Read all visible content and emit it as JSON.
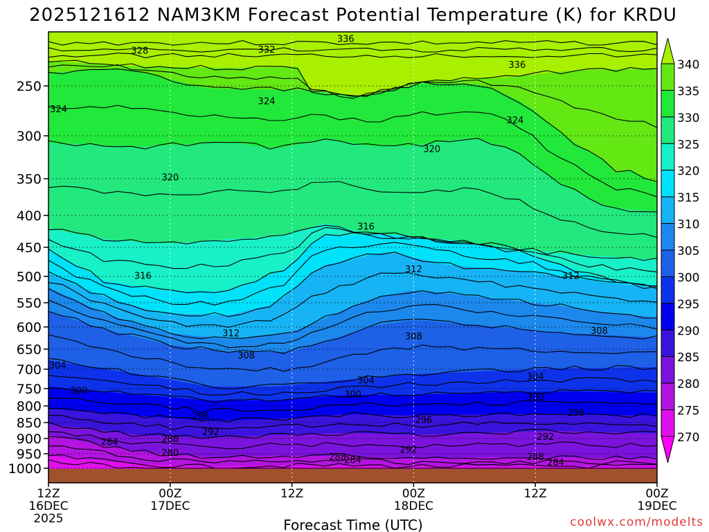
{
  "chart_data": {
    "type": "heatmap",
    "title": "2025121612 NAM3KM Forecast Potential Temperature (K) for KRDU",
    "xlabel": "Forecast Time (UTC)",
    "ylabel": "",
    "credit": "coolwx.com/modelts",
    "x_ticks": [
      {
        "hour": 0,
        "lines": [
          "12Z",
          "16DEC",
          "2025"
        ]
      },
      {
        "hour": 12,
        "lines": [
          "00Z",
          "17DEC"
        ]
      },
      {
        "hour": 24,
        "lines": [
          "12Z"
        ]
      },
      {
        "hour": 36,
        "lines": [
          "00Z",
          "18DEC"
        ]
      },
      {
        "hour": 48,
        "lines": [
          "12Z"
        ]
      },
      {
        "hour": 60,
        "lines": [
          "00Z",
          "19DEC"
        ]
      }
    ],
    "xlim": [
      0,
      60
    ],
    "pressure_ticks": [
      250,
      300,
      350,
      400,
      450,
      500,
      550,
      600,
      650,
      700,
      750,
      800,
      850,
      900,
      950,
      1000
    ],
    "pressure_range": [
      200,
      1013
    ],
    "colorbar": {
      "levels": [
        270,
        275,
        280,
        285,
        290,
        295,
        300,
        305,
        310,
        315,
        320,
        325,
        330,
        335,
        340
      ],
      "colors": [
        "#ff00ff",
        "#e010ec",
        "#b414e0",
        "#7a14dc",
        "#3a14dc",
        "#0000ee",
        "#0e32ea",
        "#1e60e6",
        "#1c88ec",
        "#16b4f4",
        "#00e2fa",
        "#18f0c8",
        "#22e87e",
        "#22e83c",
        "#64e814",
        "#a8f000"
      ]
    },
    "isotherm_labels": [
      {
        "value": 336,
        "hour": 29.3,
        "pressure": 206
      },
      {
        "value": 336,
        "hour": 46.2,
        "pressure": 230
      },
      {
        "value": 332,
        "hour": 21.5,
        "pressure": 216
      },
      {
        "value": 328,
        "hour": 9.0,
        "pressure": 217
      },
      {
        "value": 324,
        "hour": 1.0,
        "pressure": 273
      },
      {
        "value": 324,
        "hour": 21.5,
        "pressure": 265
      },
      {
        "value": 324,
        "hour": 46.0,
        "pressure": 284
      },
      {
        "value": 320,
        "hour": 37.8,
        "pressure": 315
      },
      {
        "value": 320,
        "hour": 12.0,
        "pressure": 348
      },
      {
        "value": 316,
        "hour": 31.3,
        "pressure": 417
      },
      {
        "value": 316,
        "hour": 9.3,
        "pressure": 498
      },
      {
        "value": 312,
        "hour": 36.0,
        "pressure": 487
      },
      {
        "value": 312,
        "hour": 51.5,
        "pressure": 498
      },
      {
        "value": 312,
        "hour": 18.0,
        "pressure": 613
      },
      {
        "value": 308,
        "hour": 36.0,
        "pressure": 620
      },
      {
        "value": 308,
        "hour": 54.3,
        "pressure": 608
      },
      {
        "value": 308,
        "hour": 19.5,
        "pressure": 665
      },
      {
        "value": 304,
        "hour": 0.9,
        "pressure": 690
      },
      {
        "value": 304,
        "hour": 31.3,
        "pressure": 728
      },
      {
        "value": 304,
        "hour": 48.0,
        "pressure": 718
      },
      {
        "value": 300,
        "hour": 3.0,
        "pressure": 755
      },
      {
        "value": 300,
        "hour": 30.0,
        "pressure": 765
      },
      {
        "value": 300,
        "hour": 48.0,
        "pressure": 774
      },
      {
        "value": 296,
        "hour": 15.0,
        "pressure": 829
      },
      {
        "value": 296,
        "hour": 37.0,
        "pressure": 841
      },
      {
        "value": 296,
        "hour": 52.0,
        "pressure": 819
      },
      {
        "value": 292,
        "hour": 16.0,
        "pressure": 878
      },
      {
        "value": 292,
        "hour": 35.5,
        "pressure": 935
      },
      {
        "value": 292,
        "hour": 49.0,
        "pressure": 893
      },
      {
        "value": 288,
        "hour": 12.0,
        "pressure": 900
      },
      {
        "value": 288,
        "hour": 28.5,
        "pressure": 960
      },
      {
        "value": 288,
        "hour": 48.0,
        "pressure": 960
      },
      {
        "value": 284,
        "hour": 6.0,
        "pressure": 910
      },
      {
        "value": 284,
        "hour": 30.0,
        "pressure": 970
      },
      {
        "value": 284,
        "hour": 50.0,
        "pressure": 978
      },
      {
        "value": 280,
        "hour": 12.0,
        "pressure": 945
      }
    ]
  }
}
